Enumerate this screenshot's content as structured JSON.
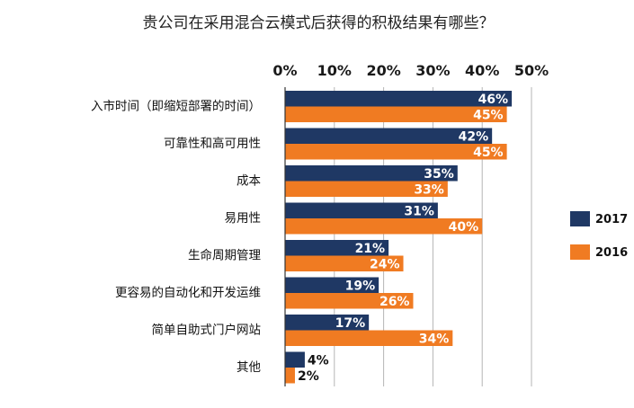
{
  "chart_data": {
    "type": "bar",
    "orientation": "horizontal",
    "title": "贵公司在采用混合云模式后获得的积极结果有哪些？",
    "categories": [
      "入市时间（即缩短部署的时间）",
      "可靠性和高可用性",
      "成本",
      "易用性",
      "生命周期管理",
      "更容易的自动化和开发运维",
      "简单自助式门户网站",
      "其他"
    ],
    "series": [
      {
        "name": "2017",
        "color": "#1f3864",
        "values": [
          46,
          42,
          35,
          31,
          21,
          19,
          17,
          4
        ]
      },
      {
        "name": "2016",
        "color": "#f07b22",
        "values": [
          45,
          45,
          33,
          40,
          24,
          26,
          34,
          2
        ]
      }
    ],
    "value_suffix": "%",
    "xlim": [
      0,
      50
    ],
    "x_ticks": [
      "0%",
      "10%",
      "20%",
      "30%",
      "40%",
      "50%"
    ],
    "x_axis_position": "top",
    "grid": true,
    "legend_position": "right"
  }
}
